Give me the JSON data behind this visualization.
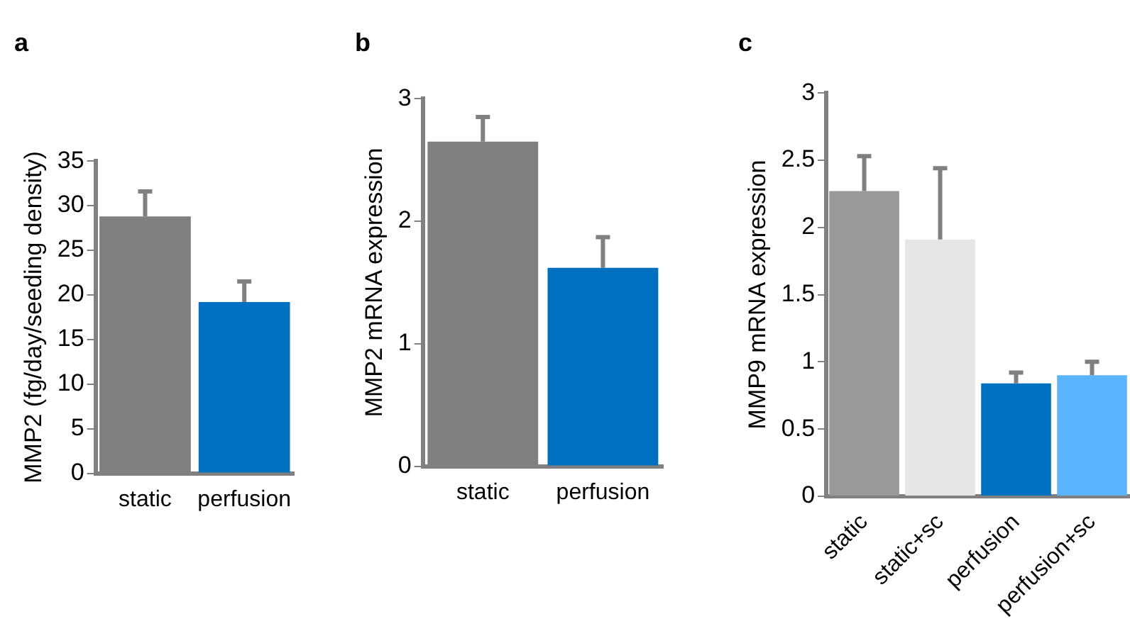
{
  "chart_data": [
    {
      "type": "bar",
      "title": "a",
      "ylabel": "MMP2 (fg/day/seeding density)",
      "categories": [
        "static",
        "perfusion"
      ],
      "values": [
        28.8,
        19.2
      ],
      "colors": [
        "#808080",
        "#0070c0"
      ],
      "errors": [
        [
          28.8,
          31.6
        ],
        [
          19.2,
          21.5
        ]
      ],
      "ylim": [
        0,
        35
      ],
      "yticks": [
        0,
        5,
        10,
        15,
        20,
        25,
        30,
        35
      ],
      "grid": false,
      "legend": false
    },
    {
      "type": "bar",
      "title": "b",
      "ylabel": "MMP2 mRNA expression",
      "categories": [
        "static",
        "perfusion"
      ],
      "values": [
        2.65,
        1.62
      ],
      "colors": [
        "#808080",
        "#0070c0"
      ],
      "errors": [
        [
          2.65,
          2.85
        ],
        [
          1.62,
          1.87
        ]
      ],
      "ylim": [
        0,
        3
      ],
      "yticks": [
        0,
        1,
        2,
        3
      ],
      "grid": false,
      "legend": false
    },
    {
      "type": "bar",
      "title": "c",
      "ylabel": "MMP9 mRNA expression",
      "categories": [
        "static",
        "static+sc",
        "perfusion",
        "perfusion+sc"
      ],
      "values": [
        2.27,
        1.91,
        0.84,
        0.9
      ],
      "colors": [
        "#999999",
        "#e6e6e6",
        "#0070c0",
        "#5ab4ff"
      ],
      "errors": [
        [
          2.27,
          2.53
        ],
        [
          1.91,
          2.44
        ],
        [
          0.84,
          0.92
        ],
        [
          0.9,
          1.0
        ]
      ],
      "ylim": [
        0,
        3
      ],
      "yticks": [
        0,
        0.5,
        1,
        1.5,
        2,
        2.5,
        3
      ],
      "grid": false,
      "legend": false
    }
  ]
}
